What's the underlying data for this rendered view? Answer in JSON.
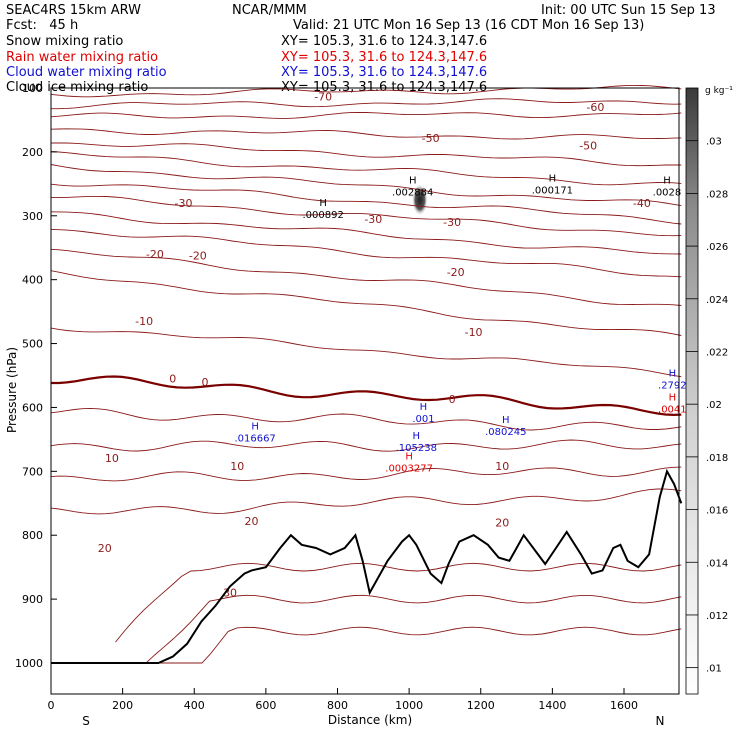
{
  "header": {
    "title": "SEAC4RS 15km ARW",
    "forecast": "Fcst:   45 h",
    "center": "NCAR/MMM",
    "init": "Init: 00 UTC Sun 15 Sep 13",
    "valid": "Valid: 21 UTC Mon 16 Sep 13 (16 CDT Mon 16 Sep 13)",
    "fields": [
      {
        "name": "Snow mixing ratio",
        "xy": "XY= 105.3, 31.6 to 124.3,147.6",
        "color": "#000000"
      },
      {
        "name": "Rain water mixing ratio",
        "xy": "XY= 105.3, 31.6 to 124.3,147.6",
        "color": "#e00000"
      },
      {
        "name": "Cloud water mixing ratio",
        "xy": "XY= 105.3, 31.6 to 124.3,147.6",
        "color": "#1010d0"
      },
      {
        "name": "Cloud ice mixing ratio",
        "xy": "XY= 105.3, 31.6 to 124.3,147.6",
        "color": "#000000"
      }
    ]
  },
  "colors": {
    "isotherm": "#8b1a1a",
    "freezing": "#7a0000",
    "terrain": "#000000",
    "snow": "#000000",
    "rain": "#e00000",
    "cloud_water": "#1010d0"
  },
  "chart_data": {
    "type": "cross-section",
    "xlabel": "Distance (km)",
    "ylabel": "Pressure (hPa)",
    "xlim": [
      0,
      1760
    ],
    "ylim": [
      1050,
      100
    ],
    "x_ticks": [
      0,
      200,
      400,
      600,
      800,
      1000,
      1200,
      1400,
      1600
    ],
    "y_ticks": [
      200,
      300,
      400,
      500,
      600,
      700,
      800,
      900,
      1000
    ],
    "y_tick_extra": "100",
    "endpoints": {
      "left": "S",
      "right": "N"
    },
    "colorbar": {
      "unit_label": "g kg⁻¹",
      "ticks": [
        ".01",
        ".012",
        ".014",
        ".016",
        ".018",
        ".02",
        ".022",
        ".024",
        ".026",
        ".028",
        ".03"
      ],
      "min": 0.009,
      "max": 0.032
    },
    "terrain": [
      [
        0,
        1000
      ],
      [
        230,
        1000
      ],
      [
        300,
        1000
      ],
      [
        340,
        990
      ],
      [
        380,
        970
      ],
      [
        420,
        935
      ],
      [
        460,
        910
      ],
      [
        500,
        880
      ],
      [
        540,
        860
      ],
      [
        560,
        855
      ],
      [
        600,
        850
      ],
      [
        640,
        820
      ],
      [
        670,
        800
      ],
      [
        700,
        815
      ],
      [
        740,
        820
      ],
      [
        780,
        830
      ],
      [
        820,
        820
      ],
      [
        850,
        800
      ],
      [
        870,
        840
      ],
      [
        890,
        890
      ],
      [
        910,
        870
      ],
      [
        940,
        840
      ],
      [
        980,
        810
      ],
      [
        1000,
        800
      ],
      [
        1020,
        815
      ],
      [
        1060,
        860
      ],
      [
        1090,
        875
      ],
      [
        1110,
        845
      ],
      [
        1140,
        810
      ],
      [
        1180,
        800
      ],
      [
        1220,
        815
      ],
      [
        1250,
        835
      ],
      [
        1280,
        840
      ],
      [
        1300,
        820
      ],
      [
        1320,
        800
      ],
      [
        1360,
        830
      ],
      [
        1380,
        845
      ],
      [
        1410,
        820
      ],
      [
        1440,
        795
      ],
      [
        1480,
        830
      ],
      [
        1510,
        860
      ],
      [
        1540,
        855
      ],
      [
        1570,
        820
      ],
      [
        1590,
        815
      ],
      [
        1610,
        840
      ],
      [
        1640,
        850
      ],
      [
        1670,
        830
      ],
      [
        1700,
        740
      ],
      [
        1720,
        700
      ],
      [
        1740,
        720
      ],
      [
        1760,
        750
      ]
    ],
    "isotherms": [
      {
        "t": -70,
        "p0": 110,
        "p1": 100
      },
      {
        "t": -60,
        "p0": 145,
        "p1": 140
      },
      {
        "t": -50,
        "p0": 185,
        "p1": 220
      },
      {
        "t": -40,
        "p0": 222,
        "p1": 285
      },
      {
        "t": -30,
        "p0": 270,
        "p1": 330
      },
      {
        "t": -20,
        "p0": 320,
        "p1": 395
      },
      {
        "t": -10,
        "p0": 390,
        "p1": 490
      },
      {
        "t": 0,
        "p0": 555,
        "p1": 605
      },
      {
        "t": 10,
        "p0": 660,
        "p1": 660
      },
      {
        "t": 20,
        "p0": 765,
        "p1": 735
      }
    ],
    "isotherm_labels": [
      {
        "text": "-70",
        "x": 760,
        "p": 113
      },
      {
        "text": "-60",
        "x": 1520,
        "p": 130
      },
      {
        "text": "-50",
        "x": 1060,
        "p": 178
      },
      {
        "text": "-50",
        "x": 1500,
        "p": 190
      },
      {
        "text": "-40",
        "x": 1650,
        "p": 280
      },
      {
        "text": "-30",
        "x": 370,
        "p": 280
      },
      {
        "text": "-30",
        "x": 900,
        "p": 305
      },
      {
        "text": "-30",
        "x": 1120,
        "p": 310
      },
      {
        "text": "-20",
        "x": 290,
        "p": 360
      },
      {
        "text": "-20",
        "x": 410,
        "p": 362
      },
      {
        "text": "-20",
        "x": 1130,
        "p": 388
      },
      {
        "text": "-10",
        "x": 260,
        "p": 465
      },
      {
        "text": "-10",
        "x": 1180,
        "p": 482
      },
      {
        "text": "0",
        "x": 340,
        "p": 555
      },
      {
        "text": "0",
        "x": 430,
        "p": 560
      },
      {
        "text": "0",
        "x": 1120,
        "p": 587
      },
      {
        "text": "10",
        "x": 170,
        "p": 679
      },
      {
        "text": "10",
        "x": 520,
        "p": 692
      },
      {
        "text": "10",
        "x": 1260,
        "p": 692
      },
      {
        "text": "20",
        "x": 560,
        "p": 778
      },
      {
        "text": "20",
        "x": 150,
        "p": 820
      },
      {
        "text": "20",
        "x": 1260,
        "p": 780
      },
      {
        "text": "30",
        "x": 500,
        "p": 890
      }
    ],
    "maxima": [
      {
        "field": "snow",
        "x": 760,
        "p": 300,
        "label": ".000892"
      },
      {
        "field": "snow",
        "x": 1010,
        "p": 265,
        "label": ".002884"
      },
      {
        "field": "snow",
        "x": 1400,
        "p": 262,
        "label": ".000171"
      },
      {
        "field": "snow",
        "x": 1720,
        "p": 265,
        "label": ".0028"
      },
      {
        "field": "cloud_water",
        "x": 570,
        "p": 650,
        "label": ".016667"
      },
      {
        "field": "cloud_water",
        "x": 1040,
        "p": 620,
        "label": ".001"
      },
      {
        "field": "cloud_water",
        "x": 1020,
        "p": 665,
        "label": ".105238"
      },
      {
        "field": "cloud_water",
        "x": 1270,
        "p": 640,
        "label": ".080245"
      },
      {
        "field": "cloud_water",
        "x": 1735,
        "p": 567,
        "label": ".2792"
      },
      {
        "field": "rain",
        "x": 1000,
        "p": 697,
        "label": ".0003277"
      },
      {
        "field": "rain",
        "x": 1735,
        "p": 605,
        "label": ".0041"
      }
    ],
    "snow_blob": {
      "x": 1030,
      "p": 275,
      "value": 0.0288
    }
  }
}
